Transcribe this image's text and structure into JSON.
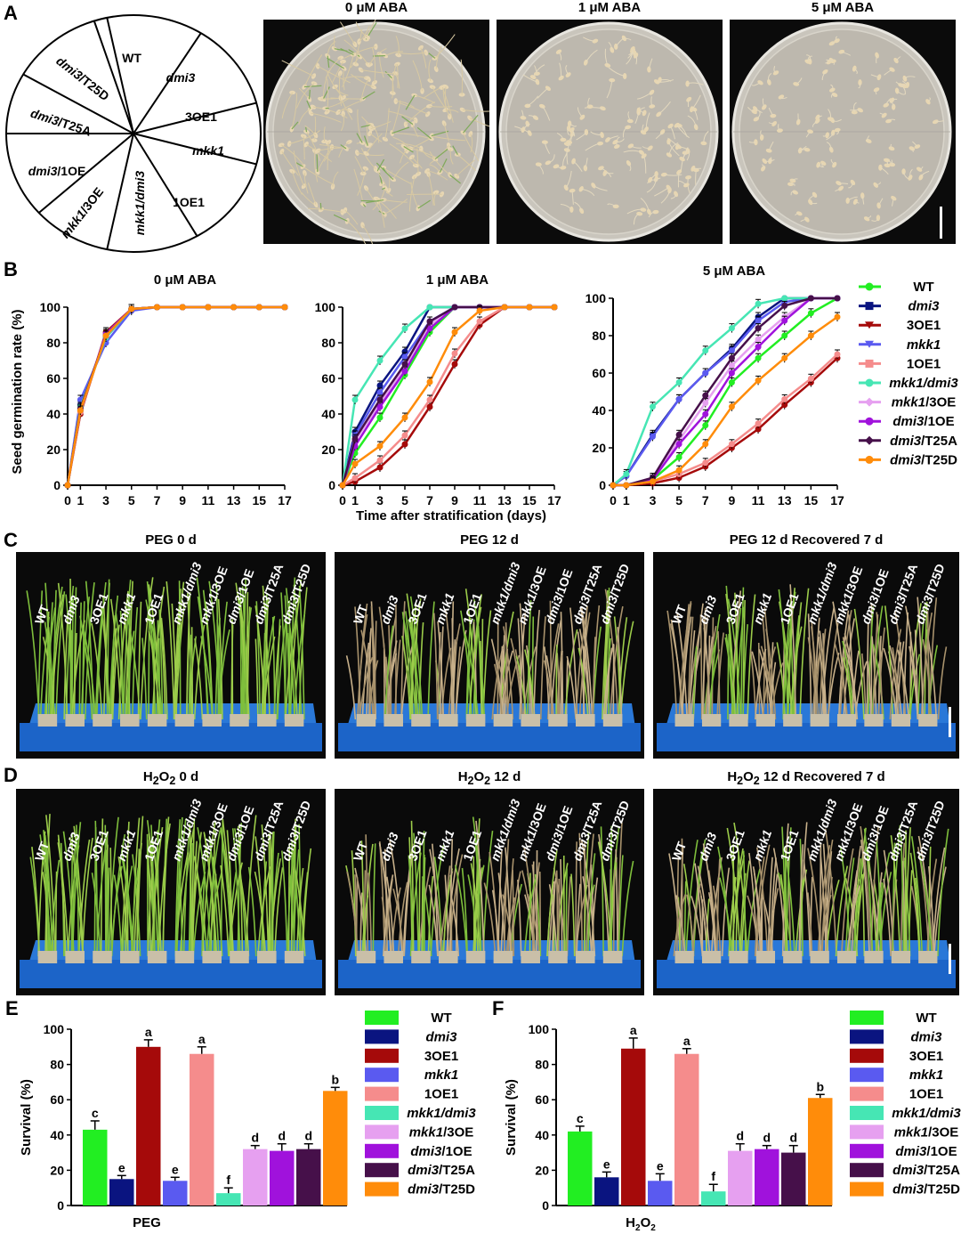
{
  "panels": [
    "A",
    "B",
    "C",
    "D",
    "E",
    "F"
  ],
  "panel_a": {
    "wheel_labels": [
      {
        "id": "wt",
        "parts": [
          {
            "t": "WT",
            "i": false
          }
        ]
      },
      {
        "id": "dmi3",
        "parts": [
          {
            "t": "dmi3",
            "i": true
          }
        ]
      },
      {
        "id": "3oe1",
        "parts": [
          {
            "t": "3OE1",
            "i": false
          }
        ]
      },
      {
        "id": "mkk1",
        "parts": [
          {
            "t": "mkk1",
            "i": true
          }
        ]
      },
      {
        "id": "1oe1",
        "parts": [
          {
            "t": "1OE1",
            "i": false
          }
        ]
      },
      {
        "id": "mkk1-dmi3",
        "parts": [
          {
            "t": "mkk1/dmi3",
            "i": true
          }
        ]
      },
      {
        "id": "mkk1-3oe",
        "parts": [
          {
            "t": "mkk1",
            "i": true
          },
          {
            "t": "/3OE",
            "i": false
          }
        ]
      },
      {
        "id": "dmi3-1oe",
        "parts": [
          {
            "t": "dmi3",
            "i": true
          },
          {
            "t": "/1OE",
            "i": false
          }
        ]
      },
      {
        "id": "dmi3-t25a",
        "parts": [
          {
            "t": "dmi3",
            "i": true
          },
          {
            "t": "/T25A",
            "i": false
          }
        ]
      },
      {
        "id": "dmi3-t25d",
        "parts": [
          {
            "t": "dmi3",
            "i": true
          },
          {
            "t": "/T25D",
            "i": false
          }
        ]
      }
    ],
    "plate_titles": [
      "0 μM ABA",
      "1 μM ABA",
      "5 μM ABA"
    ]
  },
  "series_colors": {
    "WT": "#22ee22",
    "dmi3": "#0a1480",
    "3OE1": "#a50a0a",
    "mkk1": "#5a5af0",
    "1OE1": "#f58c8c",
    "mkk1/dmi3": "#46e6b4",
    "mkk1/3OE": "#e6a0f0",
    "dmi3/1OE": "#a012dc",
    "dmi3/T25A": "#46104a",
    "dmi3/T25D": "#ff8c0a"
  },
  "chart_data": [
    {
      "id": "B1",
      "type": "line",
      "title": "0 μM ABA",
      "xlabel": "",
      "ylabel": "Seed germination rate (%)",
      "ylim": [
        0,
        100
      ],
      "x": [
        0,
        1,
        3,
        5,
        7,
        9,
        11,
        13,
        15,
        17
      ],
      "x_ticks": [
        "0",
        "1",
        "3",
        "5",
        "7",
        "9",
        "11",
        "13",
        "15",
        "17"
      ],
      "y_ticks": [
        "0",
        "20",
        "40",
        "60",
        "80",
        "100"
      ],
      "series": [
        {
          "name": "WT",
          "values": [
            0,
            42,
            84,
            99,
            100,
            100,
            100,
            100,
            100,
            100
          ]
        },
        {
          "name": "dmi3",
          "values": [
            0,
            45,
            83,
            99,
            100,
            100,
            100,
            100,
            100,
            100
          ]
        },
        {
          "name": "3OE1",
          "values": [
            0,
            40,
            86,
            99,
            100,
            100,
            100,
            100,
            100,
            100
          ]
        },
        {
          "name": "mkk1",
          "values": [
            0,
            48,
            80,
            98,
            100,
            100,
            100,
            100,
            100,
            100
          ]
        },
        {
          "name": "1OE1",
          "values": [
            0,
            41,
            85,
            99,
            100,
            100,
            100,
            100,
            100,
            100
          ]
        },
        {
          "name": "mkk1/dmi3",
          "values": [
            0,
            44,
            83,
            99,
            100,
            100,
            100,
            100,
            100,
            100
          ]
        },
        {
          "name": "mkk1/3OE",
          "values": [
            0,
            43,
            84,
            99,
            100,
            100,
            100,
            100,
            100,
            100
          ]
        },
        {
          "name": "dmi3/1OE",
          "values": [
            0,
            42,
            85,
            99,
            100,
            100,
            100,
            100,
            100,
            100
          ]
        },
        {
          "name": "dmi3/T25A",
          "values": [
            0,
            43,
            84,
            99,
            100,
            100,
            100,
            100,
            100,
            100
          ]
        },
        {
          "name": "dmi3/T25D",
          "values": [
            0,
            42,
            84,
            99,
            100,
            100,
            100,
            100,
            100,
            100
          ]
        }
      ]
    },
    {
      "id": "B2",
      "type": "line",
      "title": "1 μM ABA",
      "xlabel": "Time after stratification (days)",
      "ylabel": "",
      "ylim": [
        0,
        100
      ],
      "x": [
        0,
        1,
        3,
        5,
        7,
        9,
        11,
        13,
        15,
        17
      ],
      "x_ticks": [
        "0",
        "1",
        "3",
        "5",
        "7",
        "9",
        "11",
        "13",
        "15",
        "17"
      ],
      "y_ticks": [
        "0",
        "20",
        "40",
        "60",
        "80",
        "100"
      ],
      "series": [
        {
          "name": "WT",
          "values": [
            0,
            18,
            38,
            62,
            86,
            100,
            100,
            100,
            100,
            100
          ]
        },
        {
          "name": "dmi3",
          "values": [
            0,
            30,
            56,
            75,
            100,
            100,
            100,
            100,
            100,
            100
          ]
        },
        {
          "name": "3OE1",
          "values": [
            0,
            2,
            10,
            23,
            44,
            68,
            90,
            100,
            100,
            100
          ]
        },
        {
          "name": "mkk1",
          "values": [
            0,
            28,
            52,
            72,
            92,
            100,
            100,
            100,
            100,
            100
          ]
        },
        {
          "name": "1OE1",
          "values": [
            0,
            4,
            14,
            28,
            48,
            74,
            92,
            100,
            100,
            100
          ]
        },
        {
          "name": "mkk1/dmi3",
          "values": [
            0,
            48,
            70,
            88,
            100,
            100,
            100,
            100,
            100,
            100
          ]
        },
        {
          "name": "mkk1/3OE",
          "values": [
            0,
            25,
            46,
            66,
            90,
            100,
            100,
            100,
            100,
            100
          ]
        },
        {
          "name": "dmi3/1OE",
          "values": [
            0,
            22,
            44,
            64,
            88,
            100,
            100,
            100,
            100,
            100
          ]
        },
        {
          "name": "dmi3/T25A",
          "values": [
            0,
            26,
            48,
            68,
            92,
            100,
            100,
            100,
            100,
            100
          ]
        },
        {
          "name": "dmi3/T25D",
          "values": [
            0,
            12,
            22,
            38,
            58,
            86,
            98,
            100,
            100,
            100
          ]
        }
      ]
    },
    {
      "id": "B3",
      "type": "line",
      "title": "5 μM ABA",
      "xlabel": "",
      "ylabel": "",
      "ylim": [
        0,
        100
      ],
      "x": [
        0,
        1,
        3,
        5,
        7,
        9,
        11,
        13,
        15,
        17
      ],
      "x_ticks": [
        "0",
        "1",
        "3",
        "5",
        "7",
        "9",
        "11",
        "13",
        "15",
        "17"
      ],
      "y_ticks": [
        "0",
        "20",
        "40",
        "60",
        "80",
        "100"
      ],
      "series": [
        {
          "name": "WT",
          "values": [
            0,
            0,
            3,
            15,
            32,
            55,
            68,
            80,
            92,
            100
          ]
        },
        {
          "name": "dmi3",
          "values": [
            0,
            5,
            27,
            46,
            60,
            73,
            90,
            100,
            100,
            100
          ]
        },
        {
          "name": "3OE1",
          "values": [
            0,
            0,
            1,
            4,
            10,
            20,
            30,
            43,
            55,
            68
          ]
        },
        {
          "name": "mkk1",
          "values": [
            0,
            5,
            26,
            46,
            60,
            72,
            88,
            98,
            100,
            100
          ]
        },
        {
          "name": "1OE1",
          "values": [
            0,
            0,
            2,
            6,
            12,
            22,
            33,
            46,
            57,
            70
          ]
        },
        {
          "name": "mkk1/dmi3",
          "values": [
            0,
            6,
            42,
            55,
            72,
            84,
            97,
            100,
            100,
            100
          ]
        },
        {
          "name": "mkk1/3OE",
          "values": [
            0,
            0,
            4,
            24,
            44,
            64,
            78,
            90,
            100,
            100
          ]
        },
        {
          "name": "dmi3/1OE",
          "values": [
            0,
            0,
            3,
            22,
            38,
            60,
            74,
            88,
            100,
            100
          ]
        },
        {
          "name": "dmi3/T25A",
          "values": [
            0,
            0,
            4,
            27,
            48,
            68,
            84,
            96,
            100,
            100
          ]
        },
        {
          "name": "dmi3/T25D",
          "values": [
            0,
            0,
            2,
            8,
            22,
            42,
            56,
            68,
            80,
            90
          ]
        }
      ]
    },
    {
      "id": "E",
      "type": "bar",
      "title": "",
      "xlabel": "PEG",
      "ylabel": "Survival (%)",
      "ylim": [
        0,
        100
      ],
      "y_ticks": [
        "0",
        "20",
        "40",
        "60",
        "80",
        "100"
      ],
      "categories": [
        "WT",
        "dmi3",
        "3OE1",
        "mkk1",
        "1OE1",
        "mkk1/dmi3",
        "mkk1/3OE",
        "dmi3/1OE",
        "dmi3/T25A",
        "dmi3/T25D"
      ],
      "values": [
        43,
        15,
        90,
        14,
        86,
        7,
        32,
        31,
        32,
        65
      ],
      "errors": [
        5,
        2,
        4,
        2,
        4,
        3,
        2,
        4,
        3,
        2
      ],
      "letters": [
        "c",
        "e",
        "a",
        "e",
        "a",
        "f",
        "d",
        "d",
        "d",
        "b"
      ]
    },
    {
      "id": "F",
      "type": "bar",
      "title": "",
      "xlabel": "H2O2",
      "ylabel": "Survival (%)",
      "ylim": [
        0,
        100
      ],
      "y_ticks": [
        "0",
        "20",
        "40",
        "60",
        "80",
        "100"
      ],
      "categories": [
        "WT",
        "dmi3",
        "3OE1",
        "mkk1",
        "1OE1",
        "mkk1/dmi3",
        "mkk1/3OE",
        "dmi3/1OE",
        "dmi3/T25A",
        "dmi3/T25D"
      ],
      "values": [
        42,
        16,
        89,
        14,
        86,
        8,
        31,
        32,
        30,
        61
      ],
      "errors": [
        3,
        3,
        6,
        4,
        3,
        4,
        4,
        2,
        4,
        2
      ],
      "letters": [
        "c",
        "e",
        "a",
        "e",
        "a",
        "f",
        "d",
        "d",
        "d",
        "b"
      ]
    }
  ],
  "legend_entries": [
    {
      "key": "WT",
      "parts": [
        {
          "t": "WT",
          "i": false
        }
      ]
    },
    {
      "key": "dmi3",
      "parts": [
        {
          "t": "dmi3",
          "i": true
        }
      ]
    },
    {
      "key": "3OE1",
      "parts": [
        {
          "t": "3OE1",
          "i": false
        }
      ]
    },
    {
      "key": "mkk1",
      "parts": [
        {
          "t": "mkk1",
          "i": true
        }
      ]
    },
    {
      "key": "1OE1",
      "parts": [
        {
          "t": "1OE1",
          "i": false
        }
      ]
    },
    {
      "key": "mkk1/dmi3",
      "parts": [
        {
          "t": "mkk1/dmi3",
          "i": true
        }
      ]
    },
    {
      "key": "mkk1/3OE",
      "parts": [
        {
          "t": "mkk1",
          "i": true
        },
        {
          "t": "/3OE",
          "i": false
        }
      ]
    },
    {
      "key": "dmi3/1OE",
      "parts": [
        {
          "t": "dmi3",
          "i": true
        },
        {
          "t": "/1OE",
          "i": false
        }
      ]
    },
    {
      "key": "dmi3/T25A",
      "parts": [
        {
          "t": "dmi3",
          "i": true
        },
        {
          "t": "/T25A",
          "i": false
        }
      ]
    },
    {
      "key": "dmi3/T25D",
      "parts": [
        {
          "t": "dmi3",
          "i": true
        },
        {
          "t": "/T25D",
          "i": false
        }
      ]
    }
  ],
  "panel_c": {
    "titles": [
      "PEG 0 d",
      "PEG 12 d",
      "PEG 12 d Recovered 7 d"
    ]
  },
  "panel_d": {
    "titles": [
      {
        "pre": "H",
        "sub": "2",
        "mid": "O",
        "sub2": "2",
        "post": " 0 d"
      },
      {
        "pre": "H",
        "sub": "2",
        "mid": "O",
        "sub2": "2",
        "post": " 12 d"
      },
      {
        "pre": "H",
        "sub": "2",
        "mid": "O",
        "sub2": "2",
        "post": "  12 d Recovered 7 d"
      }
    ]
  },
  "tray_labels": [
    {
      "parts": [
        {
          "t": "WT",
          "i": false
        }
      ]
    },
    {
      "parts": [
        {
          "t": "dmi3",
          "i": true
        }
      ]
    },
    {
      "parts": [
        {
          "t": "3OE1",
          "i": false
        }
      ]
    },
    {
      "parts": [
        {
          "t": "mkk1",
          "i": true
        }
      ]
    },
    {
      "parts": [
        {
          "t": "1OE1",
          "i": false
        }
      ]
    },
    {
      "parts": [
        {
          "t": "mkk1/dmi3",
          "i": true
        }
      ]
    },
    {
      "parts": [
        {
          "t": "mkk1",
          "i": true
        },
        {
          "t": "/3OE",
          "i": false
        }
      ]
    },
    {
      "parts": [
        {
          "t": "dmi3",
          "i": true
        },
        {
          "t": "/1OE",
          "i": false
        }
      ]
    },
    {
      "parts": [
        {
          "t": "dmi3",
          "i": true
        },
        {
          "t": "/T25A",
          "i": false
        }
      ]
    },
    {
      "parts": [
        {
          "t": "dmi3",
          "i": true
        },
        {
          "t": "/T25D",
          "i": false
        }
      ]
    }
  ],
  "plant_health": {
    "C": [
      [
        1,
        1,
        1,
        1,
        1,
        1,
        1,
        1,
        1,
        1
      ],
      [
        0.15,
        0.1,
        0.95,
        0.15,
        0.9,
        0.05,
        0.2,
        0.2,
        0.2,
        0.6
      ],
      [
        0.1,
        0.05,
        0.9,
        0.05,
        0.85,
        0.02,
        0.15,
        0.15,
        0.15,
        0.5
      ]
    ],
    "D": [
      [
        1,
        1,
        1,
        1,
        1,
        1,
        1,
        1,
        1,
        1
      ],
      [
        0.25,
        0.2,
        0.95,
        0.2,
        0.9,
        0.1,
        0.3,
        0.3,
        0.3,
        0.7
      ],
      [
        0.2,
        0.1,
        0.85,
        0.1,
        0.8,
        0.05,
        0.6,
        0.7,
        0.65,
        0.55
      ]
    ]
  }
}
